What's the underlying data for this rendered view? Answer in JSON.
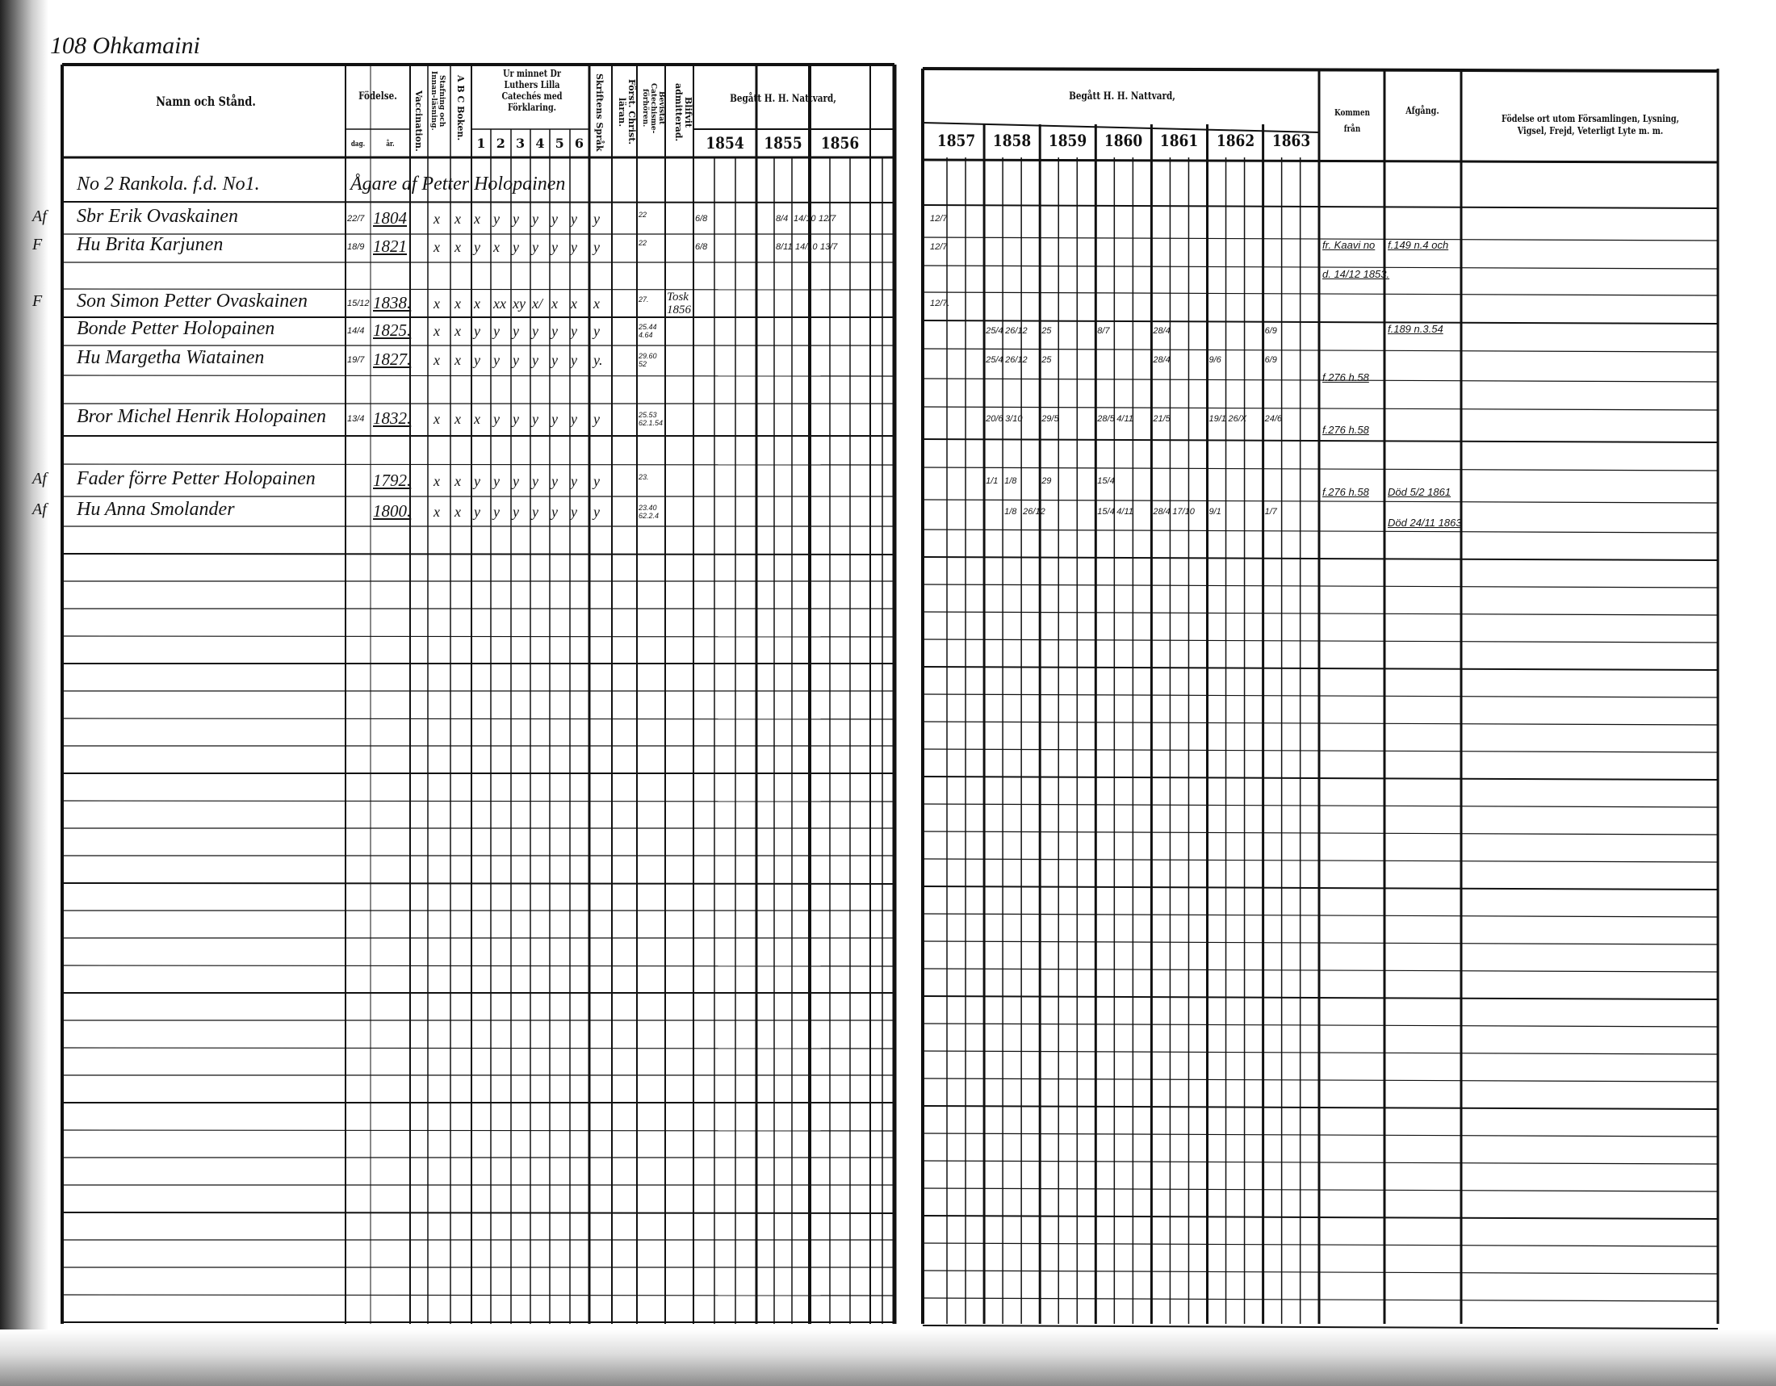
{
  "page_heading": "108 Ohkamaini",
  "left_page": {
    "headers": {
      "name": "Namn och Stånd.",
      "birth": "Födelse.",
      "birth_day": "dag.",
      "birth_year": "år.",
      "vaccination": "Vaccination.",
      "reading": "Stafning och Innan-läsning.",
      "abc": "A B C Boken.",
      "catechism": "Ur minnet Dr Luthers Lilla Catechés med Förklaring.",
      "catechism_parts": [
        "1",
        "2",
        "3",
        "4",
        "5",
        "6"
      ],
      "scripture": "Skriftens Språk",
      "first_christian": "Först. Christ. läran.",
      "catechism_hearing": "Bevistat Catechisme-förhören.",
      "admitted": "Blifvit admitterad.",
      "communion": "Begått H. H. Nattvard,",
      "communion_years": [
        "1854",
        "1855",
        "1856"
      ]
    },
    "rows": [
      {
        "margin": "",
        "name": "No 2 Rankola. f.d. No1.",
        "day": "",
        "year": "",
        "marks": [],
        "span_note": "Ågare af Petter Holopainen"
      },
      {
        "margin": "Af",
        "name": "Sbr Erik Ovaskainen",
        "day": "22/7",
        "year": "1804",
        "marks": [
          "x",
          "x",
          "x",
          "y",
          "y",
          "y",
          "y",
          "y",
          "y"
        ]
      },
      {
        "margin": "F",
        "name": "Hu Brita Karjunen",
        "day": "18/9",
        "year": "1821",
        "marks": [
          "x",
          "x",
          "y",
          "x",
          "y",
          "y",
          "y",
          "y",
          "y"
        ]
      },
      {
        "margin": "F",
        "name": "Son Simon Petter Ovaskainen",
        "day": "15/12",
        "year": "1838.",
        "marks": [
          "x",
          "x",
          "x",
          "xx",
          "xy",
          "x/",
          "x",
          "x",
          "x"
        ]
      },
      {
        "margin": "",
        "name": "Bonde Petter Holopainen",
        "day": "14/4",
        "year": "1825.",
        "marks": [
          "x",
          "x",
          "y",
          "y",
          "y",
          "y",
          "y",
          "y",
          "y"
        ]
      },
      {
        "margin": "",
        "name": "Hu Margetha Wiatainen",
        "day": "19/7",
        "year": "1827.",
        "marks": [
          "x",
          "x",
          "y",
          "y",
          "y",
          "y",
          "y",
          "y",
          "y."
        ]
      },
      {
        "margin": "",
        "name": "Bror Michel Henrik Holopainen",
        "day": "13/4",
        "year": "1832.",
        "marks": [
          "x",
          "x",
          "x",
          "y",
          "y",
          "y",
          "y",
          "y",
          "y"
        ]
      },
      {
        "margin": "Af",
        "name": "Fader förre Petter Holopainen",
        "day": "",
        "year": "1792.",
        "marks": [
          "x",
          "x",
          "y",
          "y",
          "y",
          "y",
          "y",
          "y",
          "y"
        ]
      },
      {
        "margin": "Af",
        "name": "Hu Anna Smolander",
        "day": "",
        "year": "1800.",
        "marks": [
          "x",
          "x",
          "y",
          "y",
          "y",
          "y",
          "y",
          "y",
          "y"
        ]
      }
    ],
    "hearing_notes": [
      {
        "row": 2,
        "text": "22"
      },
      {
        "row": 3,
        "text": "22"
      },
      {
        "row": 4,
        "text": "27."
      },
      {
        "row": 5,
        "text": "25.44 4.64"
      },
      {
        "row": 6,
        "text": "29.60 52"
      },
      {
        "row": 7,
        "text": "25.53 62.1.54"
      },
      {
        "row": 8,
        "text": "23."
      },
      {
        "row": 9,
        "text": "23.40 62.2.4"
      }
    ],
    "admitted_notes": [
      {
        "row": 4,
        "text": "Tosk 1856"
      }
    ],
    "communion_dates": [
      {
        "row": 2,
        "year": "1854",
        "sub": 0,
        "text": "6/8"
      },
      {
        "row": 3,
        "year": "1854",
        "sub": 0,
        "text": "6/8"
      },
      {
        "row": 2,
        "year": "1855",
        "sub": 1,
        "text": "8/4"
      },
      {
        "row": 2,
        "year": "1855",
        "sub": 2,
        "text": "14/10"
      },
      {
        "row": 3,
        "year": "1855",
        "sub": 1,
        "text": "8/11"
      },
      {
        "row": 3,
        "year": "1855",
        "sub": 2,
        "text": "14/10"
      },
      {
        "row": 2,
        "year": "1856",
        "sub": 0,
        "text": "12/7"
      },
      {
        "row": 3,
        "year": "1856",
        "sub": 0,
        "text": "13/7"
      }
    ]
  },
  "right_page": {
    "headers": {
      "communion": "Begått H. H. Nattvard,",
      "communion_years": [
        "1857",
        "1858",
        "1859",
        "1860",
        "1861",
        "1862",
        "1863"
      ],
      "came_from": "Kommen från",
      "departure": "Afgång.",
      "remarks": "Födelse ort utom Församlingen, Lysning, Vigsel, Frejd, Veterligt Lyte m. m."
    },
    "communion_dates": [
      {
        "row": 2,
        "year": "1857",
        "sub": 0,
        "text": "12/7"
      },
      {
        "row": 3,
        "year": "1857",
        "sub": 0,
        "text": "12/7"
      },
      {
        "row": 4,
        "year": "1857",
        "sub": 0,
        "text": "12/7."
      },
      {
        "row": 5,
        "year": "1858",
        "sub": 0,
        "text": "25/4"
      },
      {
        "row": 5,
        "year": "1858",
        "sub": 1,
        "text": "26/12"
      },
      {
        "row": 5,
        "year": "1859",
        "sub": 0,
        "text": "25"
      },
      {
        "row": 5,
        "year": "1860",
        "sub": 0,
        "text": "8/7"
      },
      {
        "row": 5,
        "year": "1861",
        "sub": 0,
        "text": "28/4"
      },
      {
        "row": 5,
        "year": "1863",
        "sub": 0,
        "text": "6/9"
      },
      {
        "row": 6,
        "year": "1858",
        "sub": 0,
        "text": "25/4"
      },
      {
        "row": 6,
        "year": "1858",
        "sub": 1,
        "text": "26/12"
      },
      {
        "row": 6,
        "year": "1859",
        "sub": 0,
        "text": "25"
      },
      {
        "row": 6,
        "year": "1861",
        "sub": 0,
        "text": "28/4"
      },
      {
        "row": 6,
        "year": "1862",
        "sub": 0,
        "text": "9/6"
      },
      {
        "row": 6,
        "year": "1863",
        "sub": 0,
        "text": "6/9"
      },
      {
        "row": 7,
        "year": "1858",
        "sub": 0,
        "text": "20/6"
      },
      {
        "row": 7,
        "year": "1858",
        "sub": 1,
        "text": "3/10"
      },
      {
        "row": 7,
        "year": "1859",
        "sub": 0,
        "text": "29/5"
      },
      {
        "row": 7,
        "year": "1860",
        "sub": 0,
        "text": "28/5"
      },
      {
        "row": 7,
        "year": "1860",
        "sub": 1,
        "text": "4/11"
      },
      {
        "row": 7,
        "year": "1861",
        "sub": 0,
        "text": "21/5"
      },
      {
        "row": 7,
        "year": "1862",
        "sub": 0,
        "text": "19/1"
      },
      {
        "row": 7,
        "year": "1862",
        "sub": 1,
        "text": "26/X"
      },
      {
        "row": 7,
        "year": "1863",
        "sub": 0,
        "text": "24/6"
      },
      {
        "row": 8,
        "year": "1858",
        "sub": 0,
        "text": "1/1"
      },
      {
        "row": 8,
        "year": "1858",
        "sub": 1,
        "text": "1/8"
      },
      {
        "row": 8,
        "year": "1859",
        "sub": 0,
        "text": "29"
      },
      {
        "row": 8,
        "year": "1860",
        "sub": 0,
        "text": "15/4"
      },
      {
        "row": 9,
        "year": "1858",
        "sub": 1,
        "text": "1/8"
      },
      {
        "row": 9,
        "year": "1858",
        "sub": 2,
        "text": "26/12"
      },
      {
        "row": 9,
        "year": "1860",
        "sub": 0,
        "text": "15/4"
      },
      {
        "row": 9,
        "year": "1860",
        "sub": 1,
        "text": "4/11"
      },
      {
        "row": 9,
        "year": "1861",
        "sub": 0,
        "text": "28/4"
      },
      {
        "row": 9,
        "year": "1861",
        "sub": 1,
        "text": "17/10"
      },
      {
        "row": 9,
        "year": "1862",
        "sub": 0,
        "text": "9/1"
      },
      {
        "row": 9,
        "year": "1863",
        "sub": 0,
        "text": "1/7"
      }
    ],
    "moves": [
      {
        "row": 3,
        "column": "came_from",
        "text": "fr. Kaavi no"
      },
      {
        "row": 3,
        "column": "departure",
        "text": "f.149 n.4 och"
      },
      {
        "row": 3.9,
        "column": "came_from",
        "text": "d. 14/12 1853."
      },
      {
        "row": 5,
        "column": "departure",
        "text": "f.189 n.3.54"
      },
      {
        "row": 6.6,
        "column": "came_from",
        "text": "f.276 h.58"
      },
      {
        "row": 7.4,
        "column": "came_from",
        "text": "f.276 h.58"
      },
      {
        "row": 8.4,
        "column": "came_from",
        "text": "f.276 h.58"
      },
      {
        "row": 8.4,
        "column": "departure",
        "text": "Död 5/2 1861"
      },
      {
        "row": 9.4,
        "column": "departure",
        "text": "Död 24/11 1863"
      }
    ]
  }
}
